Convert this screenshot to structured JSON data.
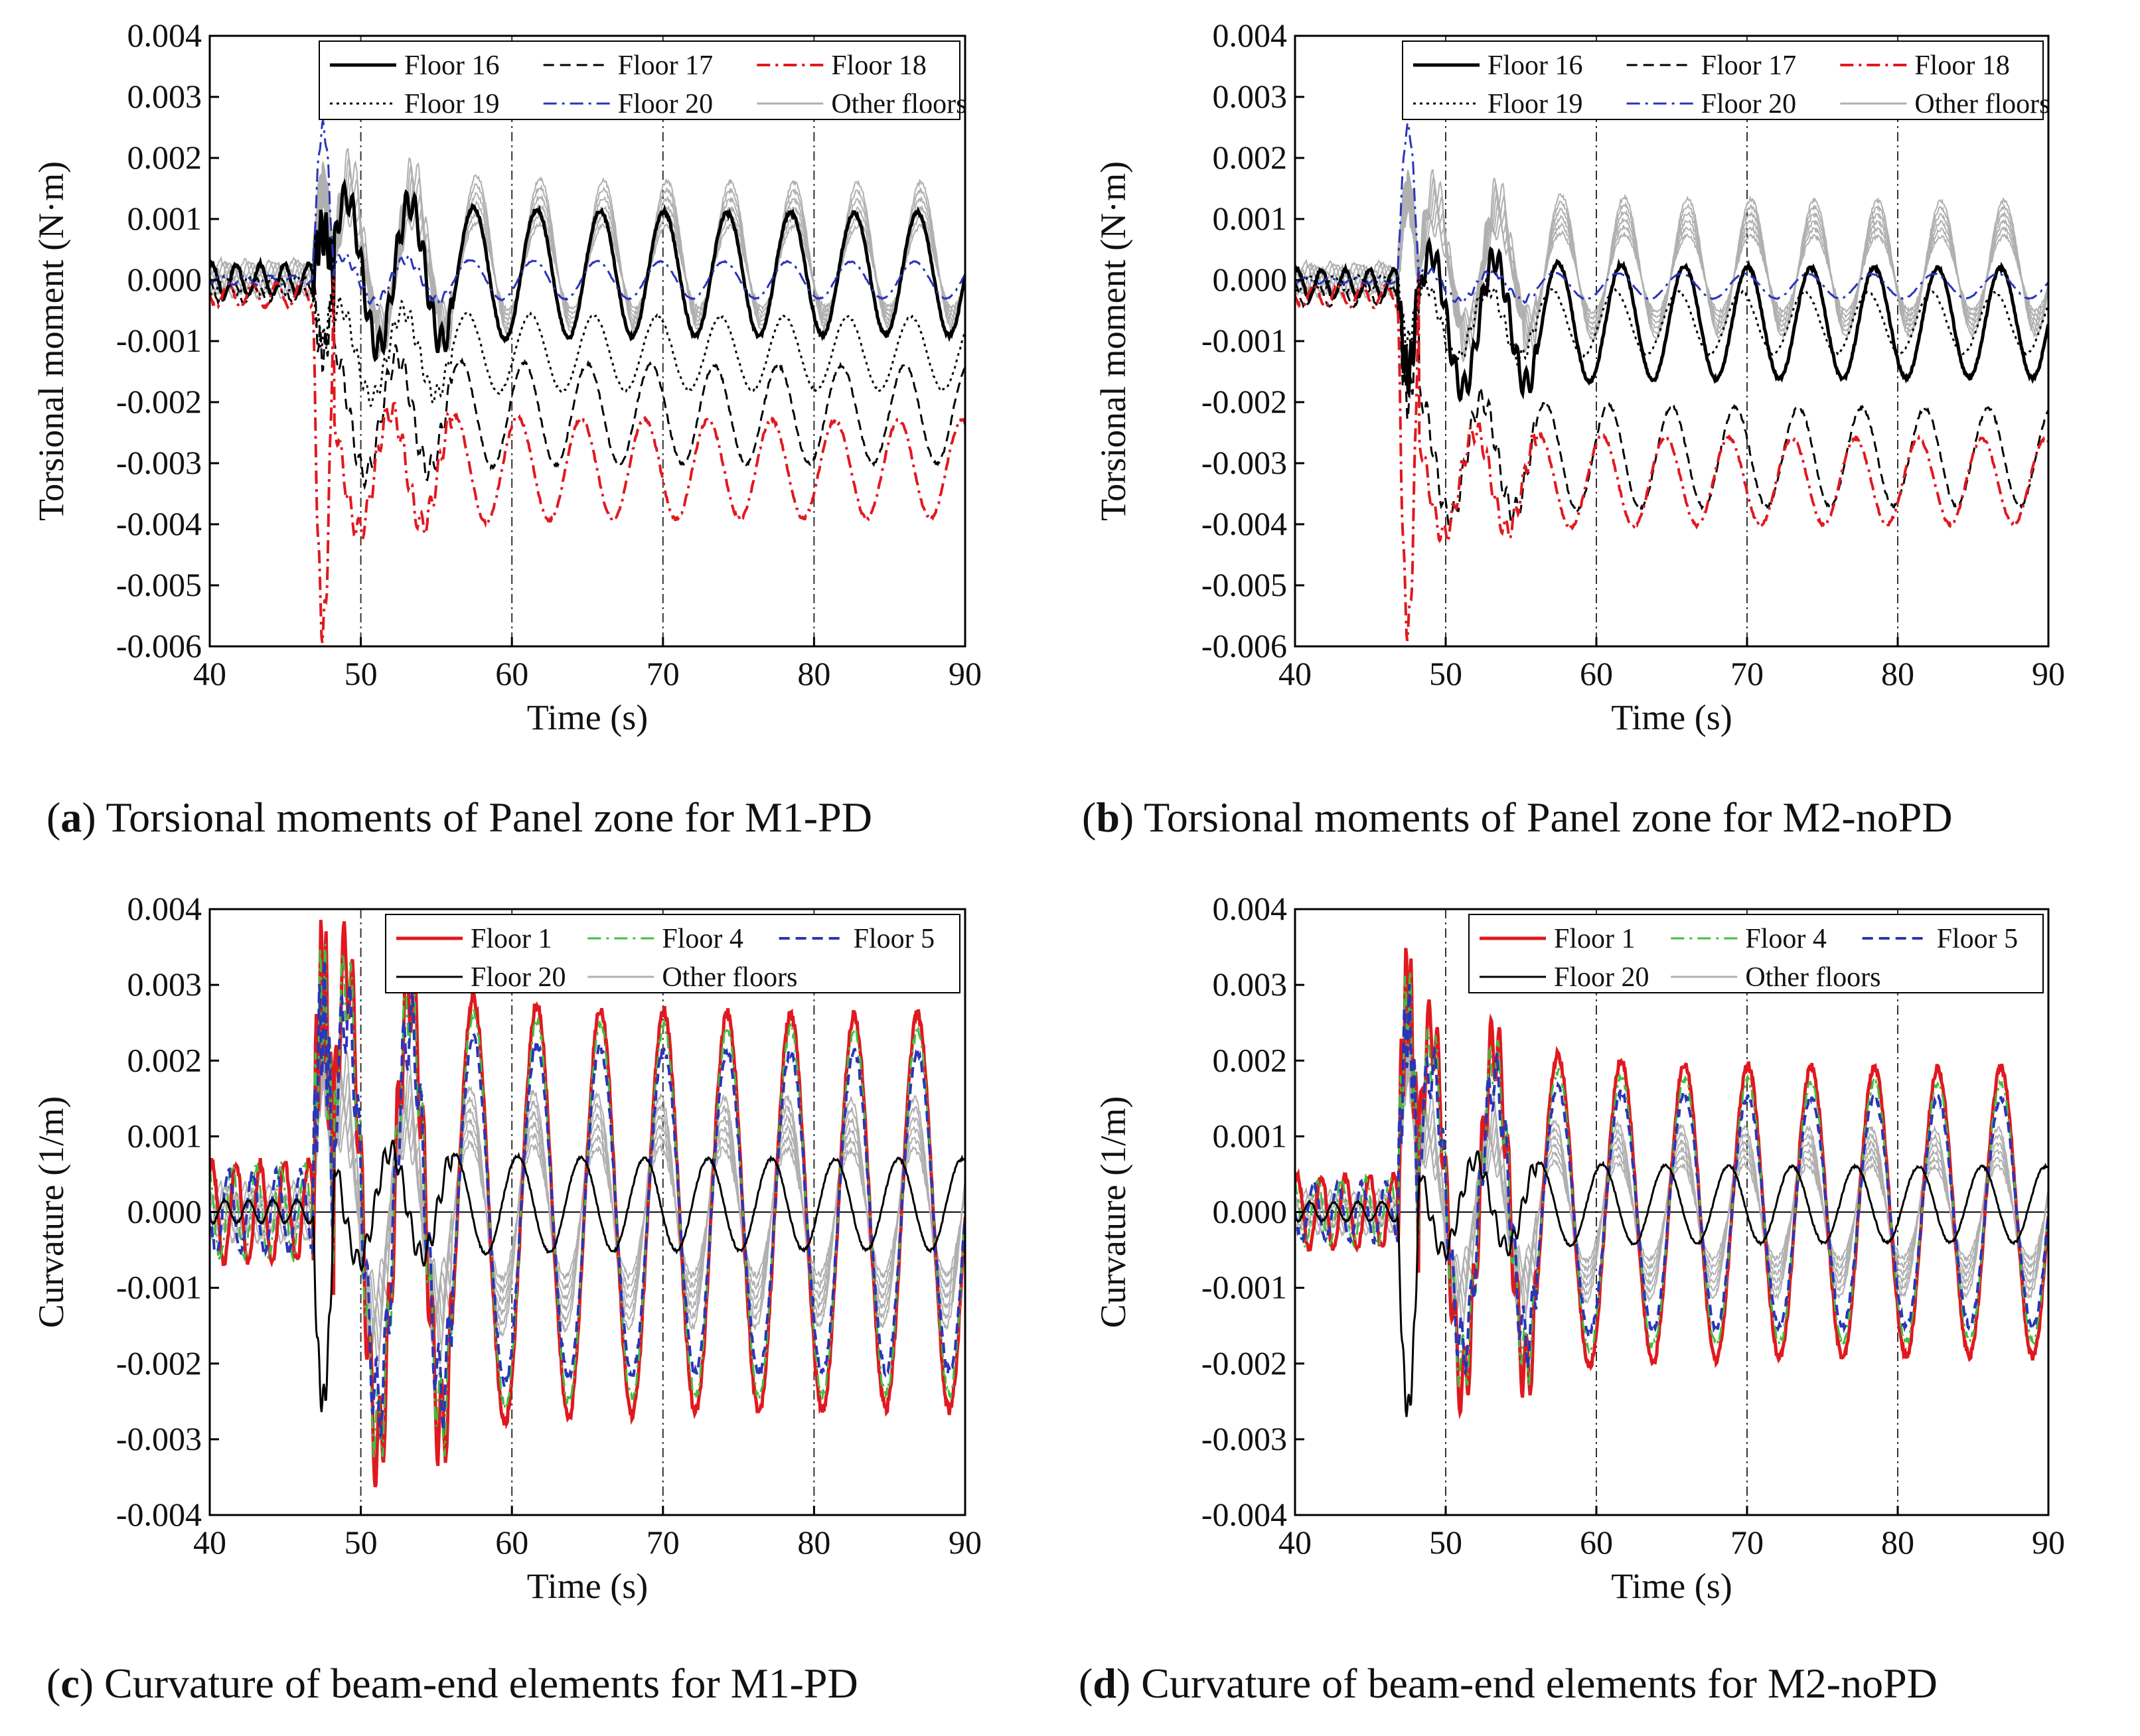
{
  "chart_data": [
    {
      "id": "a",
      "type": "line",
      "caption_letter": "a",
      "caption_text": "Torsional moments of Panel zone for M1-PD",
      "xlabel": "Time (s)",
      "ylabel": "Torsional moment (N·m)",
      "xlim": [
        40,
        90
      ],
      "ylim": [
        -0.006,
        0.004
      ],
      "xticks": [
        40,
        50,
        60,
        70,
        80,
        90
      ],
      "xtick_labels": [
        "40",
        "50",
        "60",
        "70",
        "80",
        "90"
      ],
      "yticks": [
        0.004,
        0.003,
        0.002,
        0.001,
        0.0,
        -0.001,
        -0.002,
        -0.003,
        -0.004,
        -0.005,
        -0.006
      ],
      "ytick_labels": [
        "0.004",
        "0.003",
        "0.002",
        "0.001",
        "0.000",
        "-0.001",
        "-0.002",
        "-0.003",
        "-0.004",
        "-0.005",
        "-0.006"
      ],
      "vlines": [
        50,
        60,
        70,
        80
      ],
      "zero_line": false,
      "legend": {
        "position": "top-right",
        "rows": [
          [
            "Floor 16",
            "Floor 17",
            "Floor 18"
          ],
          [
            "Floor 19",
            "Floor 20",
            "Other floors"
          ]
        ]
      },
      "series": [
        {
          "name": "Floor 16",
          "color": "#000000",
          "style": "solid",
          "width": 5,
          "mean": 0.0001,
          "amp": 0.001,
          "spike": 0.0008,
          "phase": 0
        },
        {
          "name": "Floor 17",
          "color": "#000000",
          "style": "dashed",
          "width": 3,
          "mean": -0.0022,
          "amp": 0.0008,
          "spike": -0.0012,
          "phase": 0.2
        },
        {
          "name": "Floor 18",
          "color": "#e0191f",
          "style": "dashdot",
          "width": 4,
          "mean": -0.0031,
          "amp": 0.0008,
          "spike": -0.0057,
          "phase": 0.3
        },
        {
          "name": "Floor 19",
          "color": "#000000",
          "style": "dotted",
          "width": 3,
          "mean": -0.0012,
          "amp": 0.0006,
          "spike": -0.001,
          "phase": 0.1
        },
        {
          "name": "Floor 20",
          "color": "#2a35b8",
          "style": "dashdot",
          "width": 3,
          "mean": 0.0,
          "amp": 0.0003,
          "spike": 0.0025,
          "phase": 0.05
        },
        {
          "name": "Other floors",
          "color": "#b0b0b0",
          "style": "solid",
          "width": 2,
          "mean": 0.0004,
          "amp": 0.0012,
          "spike": 0.0015,
          "phase": -0.05
        }
      ]
    },
    {
      "id": "b",
      "type": "line",
      "caption_letter": "b",
      "caption_text": "Torsional moments of Panel zone for M2-noPD",
      "xlabel": "Time (s)",
      "ylabel": "Torsional moment (N·m)",
      "xlim": [
        40,
        90
      ],
      "ylim": [
        -0.006,
        0.004
      ],
      "xticks": [
        40,
        50,
        60,
        70,
        80,
        90
      ],
      "xtick_labels": [
        "40",
        "50",
        "60",
        "70",
        "80",
        "90"
      ],
      "yticks": [
        0.004,
        0.003,
        0.002,
        0.001,
        0.0,
        -0.001,
        -0.002,
        -0.003,
        -0.004,
        -0.005,
        -0.006
      ],
      "ytick_labels": [
        "0.004",
        "0.003",
        "0.002",
        "0.001",
        "0.000",
        "-0.001",
        "-0.002",
        "-0.003",
        "-0.004",
        "-0.005",
        "-0.006"
      ],
      "vlines": [
        50,
        60,
        70,
        80
      ],
      "zero_line": false,
      "legend": {
        "position": "top-right",
        "rows": [
          [
            "Floor 16",
            "Floor 17",
            "Floor 18"
          ],
          [
            "Floor 19",
            "Floor 20",
            "Other floors"
          ]
        ]
      },
      "series": [
        {
          "name": "Floor 16",
          "color": "#000000",
          "style": "solid",
          "width": 5,
          "mean": -0.0007,
          "amp": 0.0009,
          "spike": -0.0015,
          "phase": 0
        },
        {
          "name": "Floor 17",
          "color": "#000000",
          "style": "dashed",
          "width": 3,
          "mean": -0.0029,
          "amp": 0.0008,
          "spike": -0.002,
          "phase": 0.2
        },
        {
          "name": "Floor 18",
          "color": "#e0191f",
          "style": "dashdot",
          "width": 4,
          "mean": -0.0033,
          "amp": 0.0007,
          "spike": -0.0057,
          "phase": 0.3
        },
        {
          "name": "Floor 19",
          "color": "#000000",
          "style": "dotted",
          "width": 3,
          "mean": -0.0007,
          "amp": 0.0005,
          "spike": -0.001,
          "phase": 0.1
        },
        {
          "name": "Floor 20",
          "color": "#2a35b8",
          "style": "dashdot",
          "width": 3,
          "mean": -0.0001,
          "amp": 0.0002,
          "spike": 0.0025,
          "phase": 0.05
        },
        {
          "name": "Other floors",
          "color": "#b0b0b0",
          "style": "solid",
          "width": 2,
          "mean": 0.0002,
          "amp": 0.0011,
          "spike": 0.0014,
          "phase": -0.05
        }
      ]
    },
    {
      "id": "c",
      "type": "line",
      "caption_letter": "c",
      "caption_text": "Curvature of beam-end elements for M1-PD",
      "xlabel": "Time (s)",
      "ylabel": "Curvature (1/m)",
      "xlim": [
        40,
        90
      ],
      "ylim": [
        -0.004,
        0.004
      ],
      "xticks": [
        40,
        50,
        60,
        70,
        80,
        90
      ],
      "xtick_labels": [
        "40",
        "50",
        "60",
        "70",
        "80",
        "90"
      ],
      "yticks": [
        0.004,
        0.003,
        0.002,
        0.001,
        0.0,
        -0.001,
        -0.002,
        -0.003,
        -0.004
      ],
      "ytick_labels": [
        "0.004",
        "0.003",
        "0.002",
        "0.001",
        "0.000",
        "-0.001",
        "-0.002",
        "-0.003",
        "-0.004"
      ],
      "vlines": [
        50,
        60,
        70,
        80
      ],
      "zero_line": true,
      "legend": {
        "position": "top-right",
        "rows": [
          [
            "Floor 1",
            "Floor 4",
            "Floor 5"
          ],
          [
            "Floor 20",
            "Other floors"
          ]
        ]
      },
      "series": [
        {
          "name": "Floor 1",
          "color": "#e0191f",
          "style": "solid",
          "width": 5,
          "mean": 0.0,
          "amp": 0.0026,
          "spike": 0.003,
          "phase": 0
        },
        {
          "name": "Floor 4",
          "color": "#3fbf3f",
          "style": "dashdot",
          "width": 3,
          "mean": 0.0,
          "amp": 0.0024,
          "spike": 0.0028,
          "phase": 0
        },
        {
          "name": "Floor 5",
          "color": "#2a35b8",
          "style": "dashed",
          "width": 4,
          "mean": 0.0,
          "amp": 0.0021,
          "spike": 0.0026,
          "phase": 0
        },
        {
          "name": "Floor 20",
          "color": "#000000",
          "style": "solid",
          "width": 3,
          "mean": 0.0001,
          "amp": 0.0006,
          "spike": -0.0025,
          "phase": 0.3
        },
        {
          "name": "Other floors",
          "color": "#b0b0b0",
          "style": "solid",
          "width": 2,
          "mean": 0.0,
          "amp": 0.0015,
          "spike": 0.002,
          "phase": 0.05
        }
      ]
    },
    {
      "id": "d",
      "type": "line",
      "caption_letter": "d",
      "caption_text": "Curvature of beam-end elements for M2-noPD",
      "xlabel": "Time (s)",
      "ylabel": "Curvature (1/m)",
      "xlim": [
        40,
        90
      ],
      "ylim": [
        -0.004,
        0.004
      ],
      "xticks": [
        40,
        50,
        60,
        70,
        80,
        90
      ],
      "xtick_labels": [
        "40",
        "50",
        "60",
        "70",
        "80",
        "90"
      ],
      "yticks": [
        0.004,
        0.003,
        0.002,
        0.001,
        0.0,
        -0.001,
        -0.002,
        -0.003,
        -0.004
      ],
      "ytick_labels": [
        "0.004",
        "0.003",
        "0.002",
        "0.001",
        "0.000",
        "-0.001",
        "-0.002",
        "-0.003",
        "-0.004"
      ],
      "vlines": [
        50,
        60,
        70,
        80
      ],
      "zero_line": true,
      "legend": {
        "position": "top-right",
        "rows": [
          [
            "Floor 1",
            "Floor 4",
            "Floor 5"
          ],
          [
            "Floor 20",
            "Other floors"
          ]
        ]
      },
      "series": [
        {
          "name": "Floor 1",
          "color": "#e0191f",
          "style": "solid",
          "width": 5,
          "mean": 0.0,
          "amp": 0.0019,
          "spike": 0.0029,
          "phase": 0
        },
        {
          "name": "Floor 4",
          "color": "#3fbf3f",
          "style": "dashdot",
          "width": 3,
          "mean": 0.0,
          "amp": 0.0017,
          "spike": 0.0027,
          "phase": 0
        },
        {
          "name": "Floor 5",
          "color": "#2a35b8",
          "style": "dashed",
          "width": 4,
          "mean": 0.0,
          "amp": 0.0015,
          "spike": 0.0025,
          "phase": 0
        },
        {
          "name": "Floor 20",
          "color": "#000000",
          "style": "solid",
          "width": 3,
          "mean": 0.0001,
          "amp": 0.0005,
          "spike": -0.0026,
          "phase": 0.3
        },
        {
          "name": "Other floors",
          "color": "#b0b0b0",
          "style": "solid",
          "width": 2,
          "mean": 0.0,
          "amp": 0.0011,
          "spike": 0.002,
          "phase": 0.05
        }
      ]
    }
  ]
}
